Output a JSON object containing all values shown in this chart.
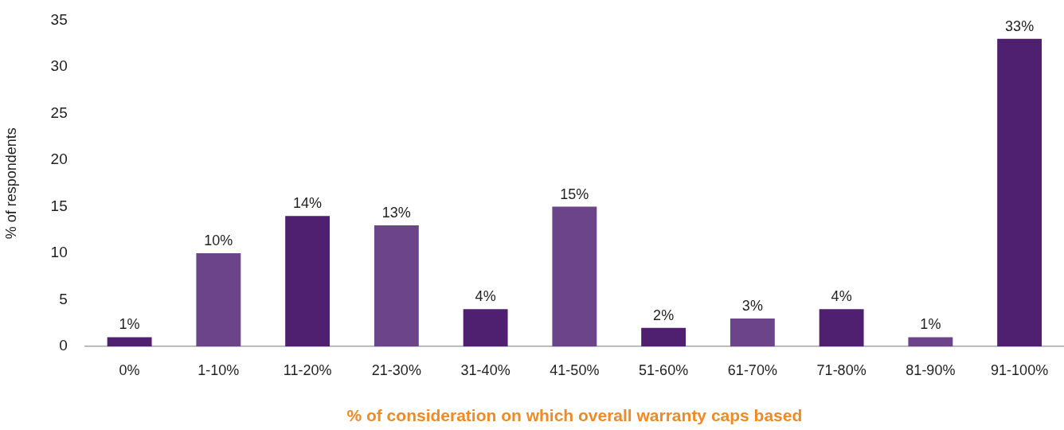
{
  "chart_data": {
    "type": "bar",
    "xlabel": "% of consideration on which overall warranty caps based",
    "ylabel": "% of respondents",
    "categories": [
      "0%",
      "1-10%",
      "11-20%",
      "21-30%",
      "31-40%",
      "41-50%",
      "51-60%",
      "61-70%",
      "71-80%",
      "81-90%",
      "91-100%"
    ],
    "values": [
      1,
      10,
      14,
      13,
      4,
      15,
      2,
      3,
      4,
      1,
      33
    ],
    "value_labels": [
      "1%",
      "10%",
      "14%",
      "13%",
      "4%",
      "15%",
      "2%",
      "3%",
      "4%",
      "1%",
      "33%"
    ],
    "colors": [
      "#4f1f70",
      "#6c4489",
      "#4f1f70",
      "#6c4489",
      "#4f1f70",
      "#6c4489",
      "#4f1f70",
      "#6c4489",
      "#4f1f70",
      "#6c4489",
      "#4f1f70"
    ],
    "ylim": [
      0,
      35
    ],
    "yticks": [
      0,
      5,
      10,
      15,
      20,
      25,
      30,
      35
    ]
  }
}
